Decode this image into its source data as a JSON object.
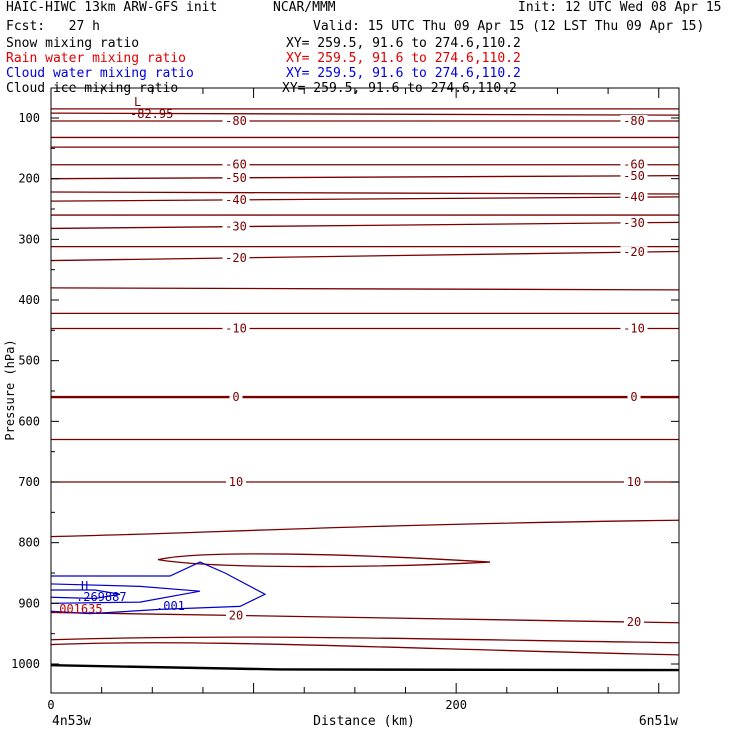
{
  "header": {
    "model": "HAIC-HIWC 13km ARW-GFS init",
    "org": "NCAR/MMM",
    "init": "Init: 12 UTC Wed 08 Apr 15",
    "fcst": "Fcst:   27 h",
    "valid": "Valid: 15 UTC Thu 09 Apr 15 (12 LST Thu 09 Apr 15)"
  },
  "fields": [
    {
      "name": "Snow mixing ratio",
      "xy": "XY= 259.5, 91.6 to 274.6,110.2",
      "color": "#000000"
    },
    {
      "name": "Rain water mixing ratio",
      "xy": "XY= 259.5, 91.6 to 274.6,110.2",
      "color": "#ff0000"
    },
    {
      "name": "Cloud water mixing ratio",
      "xy": "XY= 259.5, 91.6 to 274.6,110.2",
      "color": "#0000ff"
    },
    {
      "name": "Cloud ice mixing ratio",
      "xy": "XY= 259.5, 91.6 to 274.6,110.2",
      "color": "#000000"
    }
  ],
  "chart_data": {
    "type": "line",
    "subtype": "vertical cross-section contour plot",
    "xlabel": "Distance (km)",
    "ylabel": "Pressure (hPa)",
    "x_range_km": [
      0,
      310
    ],
    "x_ticks": [
      0,
      200
    ],
    "y_ticks": [
      100,
      200,
      300,
      400,
      500,
      600,
      700,
      800,
      900,
      1000
    ],
    "y_scale": "linear, inverted (pressure)",
    "y_range_hPa": [
      70,
      1050
    ],
    "left_end_label": "4n53w",
    "right_end_label": "6n51w",
    "temperature_contours": [
      {
        "label": "-80",
        "p_left": 105,
        "p_right": 105,
        "labels_shown": true
      },
      {
        "label": "-60",
        "p_left": 177,
        "p_right": 177,
        "labels_shown": true
      },
      {
        "label": "-50",
        "p_left": 200,
        "p_right": 195,
        "labels_shown": true
      },
      {
        "label": "-40",
        "p_left": 237,
        "p_right": 230,
        "labels_shown": true
      },
      {
        "label": "-30",
        "p_left": 282,
        "p_right": 272,
        "labels_shown": true
      },
      {
        "label": "-20",
        "p_left": 335,
        "p_right": 320,
        "labels_shown": true
      },
      {
        "label": "-10",
        "p_left": 447,
        "p_right": 447,
        "labels_shown": true
      },
      {
        "label": "0",
        "p_left": 560,
        "p_right": 560,
        "labels_shown": true
      },
      {
        "label": "10",
        "p_left": 700,
        "p_right": 700,
        "labels_shown": true
      },
      {
        "label": "20",
        "p_left": 915,
        "p_right": 932,
        "labels_shown": true
      }
    ],
    "unlabeled_isotherm_pressures_hPa": [
      85,
      92,
      132,
      148,
      222,
      260,
      312,
      380,
      422,
      630
    ],
    "low_center": {
      "label": "L",
      "value": "-82.95",
      "x_km": 18,
      "p_hPa": 90
    },
    "high_center": {
      "label": "H",
      "value": ".269887",
      "x_km": 15,
      "p_hPa": 880
    },
    "cloud_water_contour_label": ".001",
    "rain_water_label": ".001635",
    "ground_pressure_hPa": [
      1002,
      1010
    ]
  }
}
